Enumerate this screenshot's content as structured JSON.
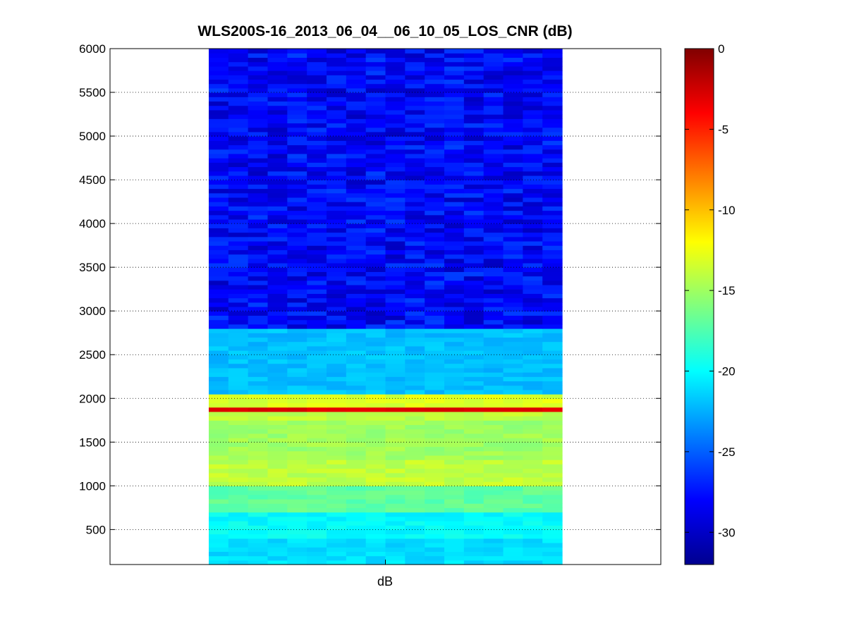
{
  "chart_data": {
    "type": "heatmap",
    "title": "WLS200S-16_2013_06_04__06_10_05_LOS_CNR (dB)",
    "xlabel": "dB",
    "ylabel": "",
    "ylim": [
      100,
      6000
    ],
    "yticks": [
      500,
      1000,
      1500,
      2000,
      2500,
      3000,
      3500,
      4000,
      4500,
      5000,
      5500,
      6000
    ],
    "grid": "dotted horizontal",
    "colormap": "jet",
    "colorbar": {
      "range": [
        -32,
        0
      ],
      "ticks": [
        0,
        -5,
        -10,
        -15,
        -20,
        -25,
        -30
      ],
      "placement": "right"
    },
    "columns": 18,
    "value_profile": [
      {
        "range_m": [
          100,
          400
        ],
        "cnr_db": -21
      },
      {
        "range_m": [
          400,
          700
        ],
        "cnr_db": -20
      },
      {
        "range_m": [
          700,
          1000
        ],
        "cnr_db": -17
      },
      {
        "range_m": [
          1000,
          1300
        ],
        "cnr_db": -14
      },
      {
        "range_m": [
          1300,
          1750
        ],
        "cnr_db": -15
      },
      {
        "range_m": [
          1850,
          1900
        ],
        "cnr_db": -3
      },
      {
        "range_m": [
          1900,
          2050
        ],
        "cnr_db": -13
      },
      {
        "range_m": [
          2050,
          2800
        ],
        "cnr_db": -22
      },
      {
        "range_m": [
          2800,
          6000
        ],
        "cnr_db": -28
      }
    ]
  }
}
